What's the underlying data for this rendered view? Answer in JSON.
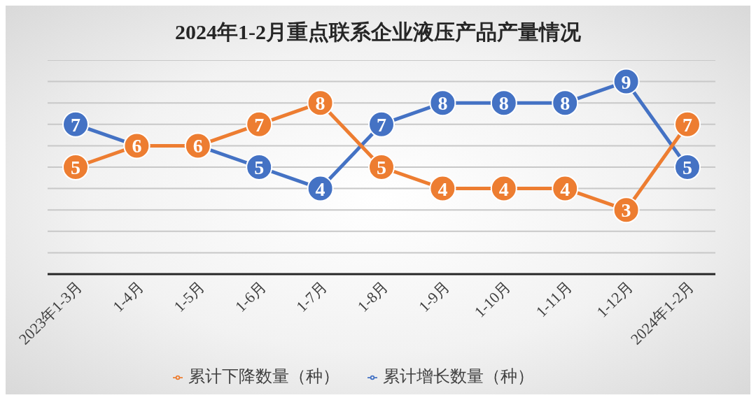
{
  "chart_data": {
    "type": "line",
    "title": "2024年1-2月重点联系企业液压产品产量情况",
    "categories": [
      "2023年1-3月",
      "1-4月",
      "1-5月",
      "1-6月",
      "1-7月",
      "1-8月",
      "1-9月",
      "1-10月",
      "1-11月",
      "1-12月",
      "2024年1-2月"
    ],
    "series": [
      {
        "name": "累计增长数量（种）",
        "color": "#4472c4",
        "values": [
          7,
          6,
          6,
          5,
          4,
          7,
          8,
          8,
          8,
          9,
          5
        ],
        "value_labels": [
          "7",
          null,
          null,
          "5",
          "4",
          "7",
          "8",
          "8",
          "8",
          "9",
          "5"
        ]
      },
      {
        "name": "累计下降数量（种）",
        "color": "#ed7d31",
        "values": [
          5,
          6,
          6,
          7,
          8,
          5,
          4,
          4,
          4,
          3,
          7
        ],
        "value_labels": [
          "5",
          "6",
          "6",
          "7",
          "8",
          "5",
          "4",
          "4",
          "4",
          "3",
          "7"
        ]
      }
    ],
    "ylim": [
      0,
      10
    ],
    "yticks": [
      {
        "value": 0,
        "label": null
      },
      {
        "value": 1,
        "label": null
      },
      {
        "value": 2,
        "label": null
      },
      {
        "value": 3,
        "label": null
      },
      {
        "value": 4,
        "label": null
      },
      {
        "value": 5,
        "label": null
      },
      {
        "value": 6,
        "label": null
      },
      {
        "value": 7,
        "label": null
      },
      {
        "value": 8,
        "label": null
      },
      {
        "value": 9,
        "label": null
      },
      {
        "value": 10,
        "label": null
      }
    ],
    "tick_labels": "x",
    "grid": "y",
    "legend": "bottom",
    "marker": "circle",
    "line_style": "solid"
  }
}
